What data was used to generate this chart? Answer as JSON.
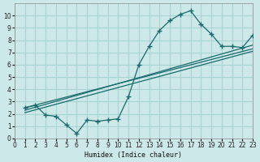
{
  "xlabel": "Humidex (Indice chaleur)",
  "bg_color": "#cce8e8",
  "line_color": "#1a6b6b",
  "grid_color": "#aad4d4",
  "xlim": [
    0,
    23
  ],
  "ylim": [
    0,
    11
  ],
  "xticks": [
    0,
    1,
    2,
    3,
    4,
    5,
    6,
    7,
    8,
    9,
    10,
    11,
    12,
    13,
    14,
    15,
    16,
    17,
    18,
    19,
    20,
    21,
    22,
    23
  ],
  "yticks": [
    0,
    1,
    2,
    3,
    4,
    5,
    6,
    7,
    8,
    9,
    10
  ],
  "main_x": [
    1,
    2,
    3,
    4,
    5,
    6,
    7,
    8,
    9,
    10,
    11,
    12,
    13,
    14,
    15,
    16,
    17,
    18,
    19,
    20,
    21,
    22,
    23
  ],
  "main_y": [
    2.5,
    2.7,
    1.9,
    1.8,
    1.1,
    0.4,
    1.5,
    1.4,
    1.5,
    1.6,
    3.4,
    6.0,
    7.5,
    8.8,
    9.6,
    10.1,
    10.4,
    9.3,
    8.5,
    7.5,
    7.5,
    7.4,
    8.4
  ],
  "trend1_x": [
    1,
    23
  ],
  "trend1_y": [
    2.5,
    7.3
  ],
  "trend2_x": [
    1,
    23
  ],
  "trend2_y": [
    2.3,
    7.6
  ],
  "trend3_x": [
    1,
    23
  ],
  "trend3_y": [
    2.1,
    7.1
  ]
}
